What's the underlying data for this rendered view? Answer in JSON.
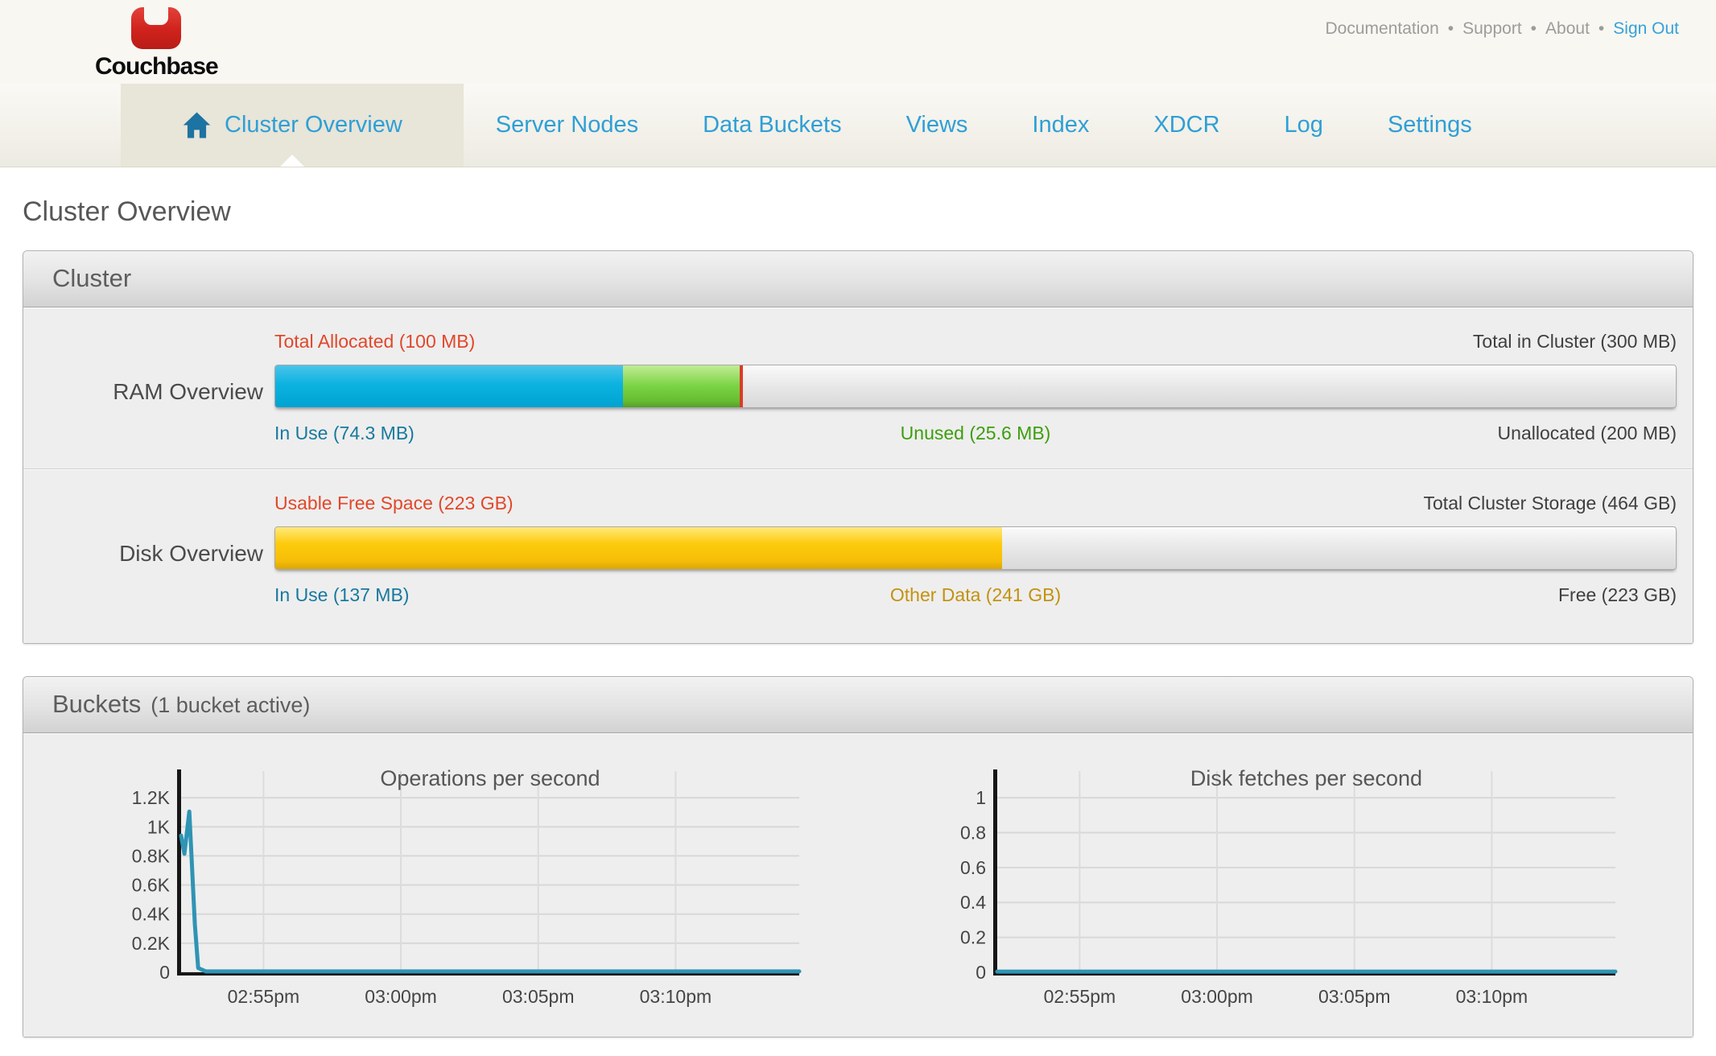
{
  "colors": {
    "nav_link_blue": "#2f9fd6",
    "signout_blue": "#36a1d8",
    "logo_red": "#d0221c",
    "label_red": "#e2472a",
    "label_blue": "#17799f",
    "label_green": "#3d9e0d",
    "label_amber": "#c3920e",
    "label_dark": "#3f3f3f",
    "bar_blue": "#0cb2e0",
    "bar_green": "#79d343",
    "bar_yellow": "#fdcb0c",
    "bar_marker_red": "#dd3b27",
    "chart_line": "#2f94b4"
  },
  "header": {
    "logo_text": "Couchbase",
    "separator": "•",
    "links": [
      {
        "label": "Documentation"
      },
      {
        "label": "Support"
      },
      {
        "label": "About"
      },
      {
        "label": "Sign Out"
      }
    ]
  },
  "nav": {
    "items": [
      {
        "label": "Cluster Overview",
        "active": true,
        "icon": "home"
      },
      {
        "label": "Server Nodes"
      },
      {
        "label": "Data Buckets"
      },
      {
        "label": "Views"
      },
      {
        "label": "Index"
      },
      {
        "label": "XDCR"
      },
      {
        "label": "Log"
      },
      {
        "label": "Settings"
      }
    ]
  },
  "page": {
    "title": "Cluster Overview"
  },
  "cluster_panel": {
    "title": "Cluster",
    "rows": [
      {
        "name": "RAM Overview",
        "top_left": "Total Allocated (100 MB)",
        "top_right": "Total in Cluster (300 MB)",
        "bottom_left": "In Use (74.3 MB)",
        "bottom_center": "Unused (25.6 MB)",
        "bottom_right": "Unallocated (200 MB)",
        "segments": [
          {
            "name": "in-use",
            "pct": 24.8
          },
          {
            "name": "unused",
            "pct": 8.5
          }
        ],
        "marker_pct": 33.3
      },
      {
        "name": "Disk Overview",
        "top_left": "Usable Free Space (223 GB)",
        "top_right": "Total Cluster Storage (464 GB)",
        "bottom_left": "In Use (137 MB)",
        "bottom_center": "Other Data (241 GB)",
        "bottom_right": "Free (223 GB)",
        "segments": [
          {
            "name": "used-plus-other",
            "pct": 51.9
          }
        ],
        "marker_pct": null
      }
    ]
  },
  "buckets_panel": {
    "title": "Buckets",
    "subtitle": "(1 bucket active)"
  },
  "chart_data": [
    {
      "type": "line",
      "title": "Operations per second",
      "xlabel": "",
      "ylabel": "",
      "grid": true,
      "xlim": [
        0,
        22.5
      ],
      "ylim": [
        0,
        1350
      ],
      "yticks": [
        {
          "v": 0,
          "label": "0"
        },
        {
          "v": 200,
          "label": "0.2K"
        },
        {
          "v": 400,
          "label": "0.4K"
        },
        {
          "v": 600,
          "label": "0.6K"
        },
        {
          "v": 800,
          "label": "0.8K"
        },
        {
          "v": 1000,
          "label": "1K"
        },
        {
          "v": 1200,
          "label": "1.2K"
        }
      ],
      "xticks": [
        {
          "v": 3,
          "label": "02:55pm"
        },
        {
          "v": 8,
          "label": "03:00pm"
        },
        {
          "v": 13,
          "label": "03:05pm"
        },
        {
          "v": 18,
          "label": "03:10pm"
        }
      ],
      "series": [
        {
          "name": "ops_per_second",
          "color": "#2f94b4",
          "points": [
            [
              0,
              940
            ],
            [
              0.12,
              815
            ],
            [
              0.3,
              1105
            ],
            [
              0.5,
              330
            ],
            [
              0.62,
              30
            ],
            [
              0.9,
              6
            ],
            [
              22.5,
              6
            ]
          ]
        }
      ]
    },
    {
      "type": "line",
      "title": "Disk fetches per second",
      "xlabel": "",
      "ylabel": "",
      "grid": true,
      "xlim": [
        0,
        22.5
      ],
      "ylim": [
        0,
        1.125
      ],
      "yticks": [
        {
          "v": 0,
          "label": "0"
        },
        {
          "v": 0.2,
          "label": "0.2"
        },
        {
          "v": 0.4,
          "label": "0.4"
        },
        {
          "v": 0.6,
          "label": "0.6"
        },
        {
          "v": 0.8,
          "label": "0.8"
        },
        {
          "v": 1,
          "label": "1"
        }
      ],
      "xticks": [
        {
          "v": 3,
          "label": "02:55pm"
        },
        {
          "v": 8,
          "label": "03:00pm"
        },
        {
          "v": 13,
          "label": "03:05pm"
        },
        {
          "v": 18,
          "label": "03:10pm"
        }
      ],
      "series": [
        {
          "name": "disk_fetches_per_second",
          "color": "#2f94b4",
          "points": [
            [
              0,
              0.004
            ],
            [
              22.5,
              0.004
            ]
          ]
        }
      ]
    }
  ]
}
